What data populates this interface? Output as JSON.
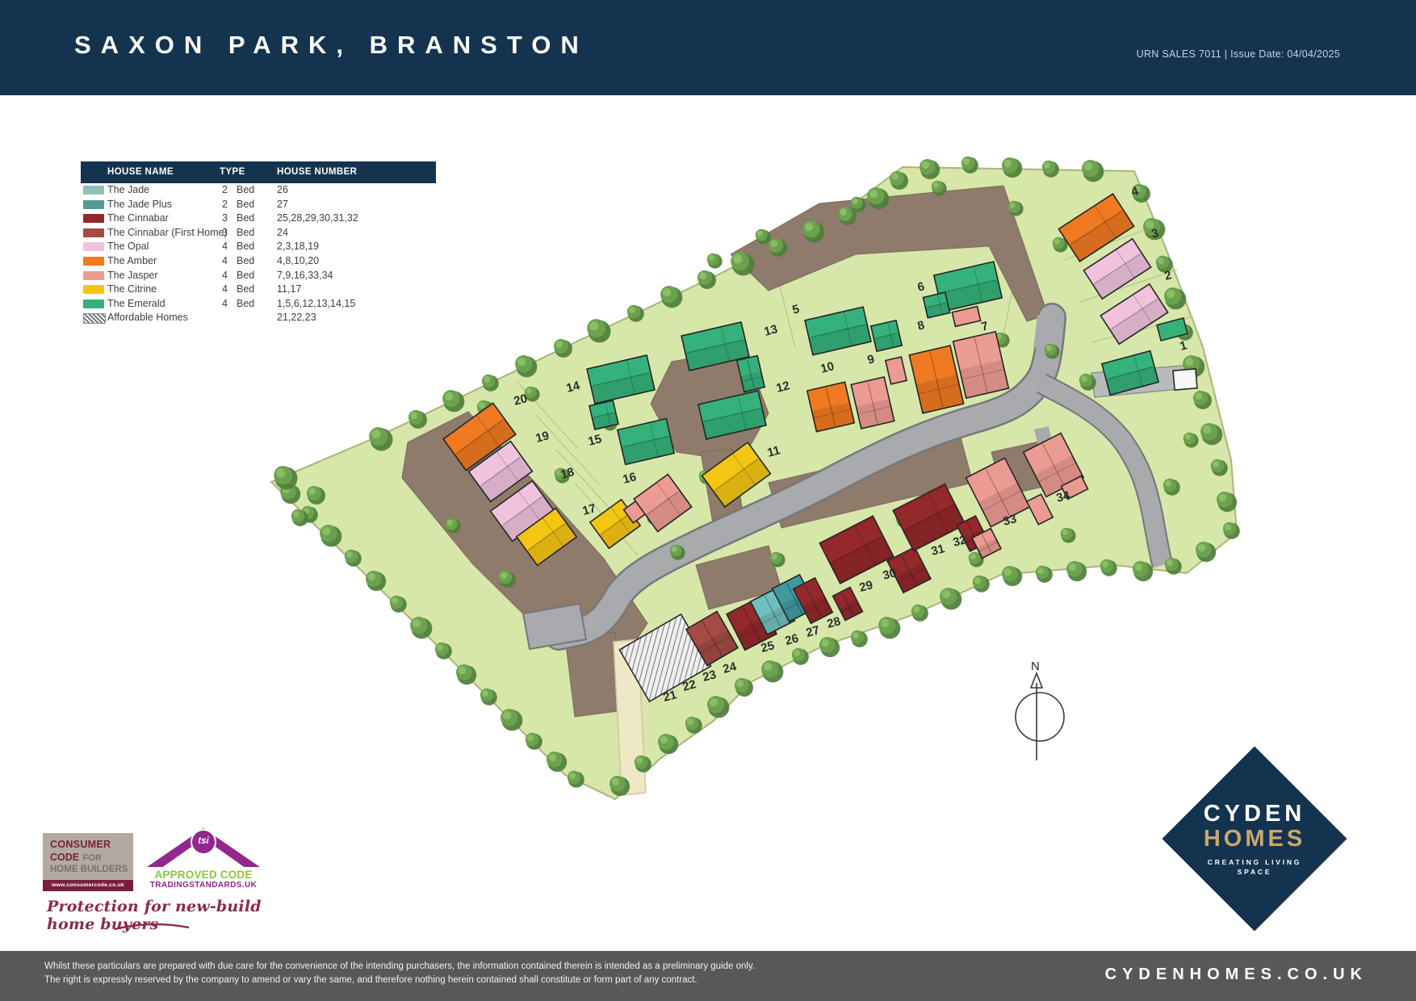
{
  "header": {
    "title": "SAXON PARK, BRANSTON",
    "meta": "URN SALES 7011 | Issue Date: 04/04/2025"
  },
  "legend": {
    "columns": [
      "HOUSE NAME",
      "TYPE",
      "HOUSE NUMBER"
    ],
    "rows": [
      {
        "name": "The Jade",
        "beds": "2",
        "bed_label": "Bed",
        "numbers": "26",
        "color": "#8fc0bb",
        "hatched": false
      },
      {
        "name": "The Jade Plus",
        "beds": "2",
        "bed_label": "Bed",
        "numbers": "27",
        "color": "#579a96",
        "hatched": false
      },
      {
        "name": "The Cinnabar",
        "beds": "3",
        "bed_label": "Bed",
        "numbers": "25,28,29,30,31,32",
        "color": "#93292b",
        "hatched": false
      },
      {
        "name": "The Cinnabar (First Home)",
        "beds": "3",
        "bed_label": "Bed",
        "numbers": "24",
        "color": "#a34b44",
        "hatched": false
      },
      {
        "name": "The Opal",
        "beds": "4",
        "bed_label": "Bed",
        "numbers": "2,3,18,19",
        "color": "#f0c2de",
        "hatched": false
      },
      {
        "name": "The Amber",
        "beds": "4",
        "bed_label": "Bed",
        "numbers": "4,8,10,20",
        "color": "#ef7a22",
        "hatched": false
      },
      {
        "name": "The Jasper",
        "beds": "4",
        "bed_label": "Bed",
        "numbers": "7,9,16,33,34",
        "color": "#ec9b93",
        "hatched": false
      },
      {
        "name": "The Citrine",
        "beds": "4",
        "bed_label": "Bed",
        "numbers": "11,17",
        "color": "#f3c614",
        "hatched": false
      },
      {
        "name": "The Emerald",
        "beds": "4",
        "bed_label": "Bed",
        "numbers": "1,5,6,12,13,14,15",
        "color": "#35b27b",
        "hatched": false
      },
      {
        "name": "Affordable Homes",
        "beds": "",
        "bed_label": "",
        "numbers": "21,22,23",
        "color": "",
        "hatched": true
      }
    ]
  },
  "site_plan": {
    "compass_label": "N",
    "colors": {
      "jade": "#6fc0bd",
      "jade_plus": "#3f9aa0",
      "cinnabar": "#93292b",
      "cinnabar_fh": "#a34b44",
      "opal": "#f0c2de",
      "amber": "#ef7a22",
      "jasper": "#ec9b93",
      "citrine": "#f3c614",
      "emerald": "#35b27b",
      "garage": "#f7f7f7"
    },
    "plots": [
      [
        "1",
        1463,
        434
      ],
      [
        "2",
        1444,
        347
      ],
      [
        "3",
        1428,
        295
      ],
      [
        "4",
        1403,
        243
      ],
      [
        "5",
        983,
        389
      ],
      [
        "6",
        1138,
        361
      ],
      [
        "7",
        1217,
        410
      ],
      [
        "8",
        1138,
        409
      ],
      [
        "9",
        1076,
        451
      ],
      [
        "10",
        1018,
        462
      ],
      [
        "11",
        952,
        566
      ],
      [
        "12",
        963,
        486
      ],
      [
        "13",
        948,
        416
      ],
      [
        "14",
        703,
        486
      ],
      [
        "15",
        730,
        552
      ],
      [
        "16",
        773,
        599
      ],
      [
        "17",
        723,
        638
      ],
      [
        "18",
        696,
        593
      ],
      [
        "19",
        665,
        548
      ],
      [
        "20",
        638,
        502
      ],
      [
        "21",
        823,
        869
      ],
      [
        "22",
        847,
        856
      ],
      [
        "23",
        872,
        844
      ],
      [
        "24",
        897,
        834
      ],
      [
        "25",
        944,
        808
      ],
      [
        "26",
        974,
        799
      ],
      [
        "27",
        1000,
        789
      ],
      [
        "28",
        1026,
        778
      ],
      [
        "29",
        1066,
        733
      ],
      [
        "30",
        1095,
        718
      ],
      [
        "31",
        1155,
        688
      ],
      [
        "32",
        1182,
        677
      ],
      [
        "33",
        1244,
        651
      ],
      [
        "34",
        1310,
        622
      ]
    ],
    "houses": [
      [
        "amber",
        1358,
        282,
        80,
        48,
        -33
      ],
      [
        "opal",
        1384,
        333,
        72,
        42,
        -33
      ],
      [
        "opal",
        1405,
        389,
        72,
        42,
        -33
      ],
      [
        "emerald",
        1400,
        462,
        62,
        40,
        -15
      ],
      [
        "emerald",
        1452,
        408,
        34,
        20,
        -15
      ],
      [
        "garage",
        1468,
        470,
        28,
        24,
        -5
      ],
      [
        "emerald",
        1038,
        410,
        74,
        44,
        -13
      ],
      [
        "emerald",
        1098,
        416,
        32,
        32,
        -13
      ],
      [
        "emerald",
        1199,
        355,
        76,
        46,
        -13
      ],
      [
        "emerald",
        1160,
        378,
        28,
        26,
        -13
      ],
      [
        "jasper",
        1215,
        452,
        54,
        72,
        -13
      ],
      [
        "jasper",
        1197,
        392,
        32,
        18,
        -13
      ],
      [
        "amber",
        1160,
        470,
        52,
        74,
        -13
      ],
      [
        "jasper",
        1081,
        499,
        42,
        56,
        -13
      ],
      [
        "jasper",
        1110,
        459,
        20,
        30,
        -13
      ],
      [
        "amber",
        1029,
        504,
        48,
        52,
        -13
      ],
      [
        "emerald",
        886,
        429,
        76,
        44,
        -13
      ],
      [
        "emerald",
        930,
        463,
        26,
        40,
        -13
      ],
      [
        "emerald",
        907,
        514,
        76,
        44,
        -13
      ],
      [
        "emerald",
        769,
        470,
        76,
        44,
        -13
      ],
      [
        "emerald",
        748,
        514,
        30,
        30,
        -13
      ],
      [
        "emerald",
        800,
        547,
        62,
        44,
        -13
      ],
      [
        "amber",
        594,
        541,
        76,
        48,
        -36
      ],
      [
        "opal",
        620,
        584,
        64,
        46,
        -36
      ],
      [
        "opal",
        647,
        633,
        64,
        46,
        -36
      ],
      [
        "citrine",
        677,
        665,
        60,
        44,
        -36
      ],
      [
        "citrine",
        762,
        649,
        48,
        40,
        -36
      ],
      [
        "jasper",
        789,
        632,
        26,
        20,
        -36
      ],
      [
        "jasper",
        821,
        623,
        52,
        50,
        -36
      ],
      [
        "citrine",
        912,
        588,
        70,
        48,
        -36
      ],
      [
        "affordable",
        824,
        815,
        88,
        74,
        -30
      ],
      [
        "cinnabar_fh",
        882,
        791,
        44,
        52,
        -30
      ],
      [
        "cinnabar",
        931,
        773,
        44,
        50,
        -27
      ],
      [
        "jade",
        957,
        757,
        38,
        46,
        -27
      ],
      [
        "jade_plus",
        984,
        741,
        38,
        46,
        -27
      ],
      [
        "cinnabar",
        1007,
        744,
        30,
        48,
        -27
      ],
      [
        "cinnabar",
        1050,
        748,
        24,
        34,
        -27
      ],
      [
        "cinnabar",
        1061,
        681,
        74,
        56,
        -27
      ],
      [
        "cinnabar",
        1126,
        706,
        38,
        44,
        -27
      ],
      [
        "cinnabar",
        1151,
        641,
        72,
        56,
        -27
      ],
      [
        "cinnabar",
        1205,
        661,
        26,
        36,
        -27
      ],
      [
        "jasper",
        1222,
        673,
        26,
        28,
        -27
      ],
      [
        "jasper",
        1236,
        610,
        54,
        68,
        -27
      ],
      [
        "jasper",
        1288,
        631,
        20,
        32,
        -27
      ],
      [
        "jasper",
        1305,
        576,
        52,
        62,
        -27
      ],
      [
        "jasper",
        1331,
        604,
        28,
        18,
        -27
      ]
    ]
  },
  "logos": {
    "consumer_code": {
      "line1": "CONSUMER",
      "line2_strong": "CODE",
      "line2_rest": " FOR",
      "line3": "HOME BUILDERS",
      "url": "www.consumercode.co.uk"
    },
    "tsi": {
      "badge": "tsi",
      "line1": "APPROVED CODE",
      "line2": "TRADINGSTANDARDS.UK"
    },
    "tagline": "Protection for new-build home buyers",
    "cyden": {
      "line1": "CYDEN",
      "line2": "HOMES",
      "line3": "CREATING LIVING",
      "line4": "SPACE"
    }
  },
  "footer": {
    "disclaimer1": "Whilst these particulars are prepared with due care for the convenience of the intending purchasers, the information contained therein is intended as a preliminary guide only.",
    "disclaimer2": "The right is expressly reserved by the company to amend or vary the same, and therefore nothing herein contained shall constitute or form part of any contract.",
    "website": "CYDENHOMES.CO.UK"
  }
}
